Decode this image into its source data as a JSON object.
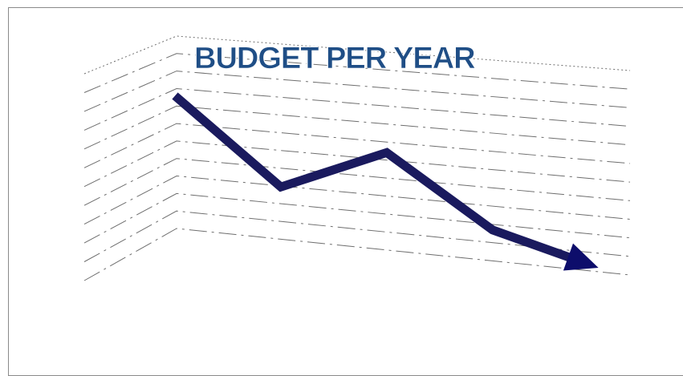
{
  "colors": {
    "title": "#1f4e86",
    "line": "#1a1a5e",
    "arrow": "#0d0d6b",
    "grid": "#6e6e6e"
  },
  "chart_data": {
    "type": "line",
    "title": "BUDGET PER YEAR",
    "xlabel": "",
    "ylabel": "",
    "grid": true,
    "legend": "none",
    "x": [
      0,
      1,
      2,
      3,
      4
    ],
    "series": [
      {
        "values": [
          10,
          4.7,
          6.7,
          2.2,
          0
        ]
      }
    ],
    "ylim": [
      0,
      11
    ],
    "xlim": [
      0,
      4.2
    ],
    "end_marker": "arrow",
    "grid_style": "3d-perspective-dashed"
  }
}
